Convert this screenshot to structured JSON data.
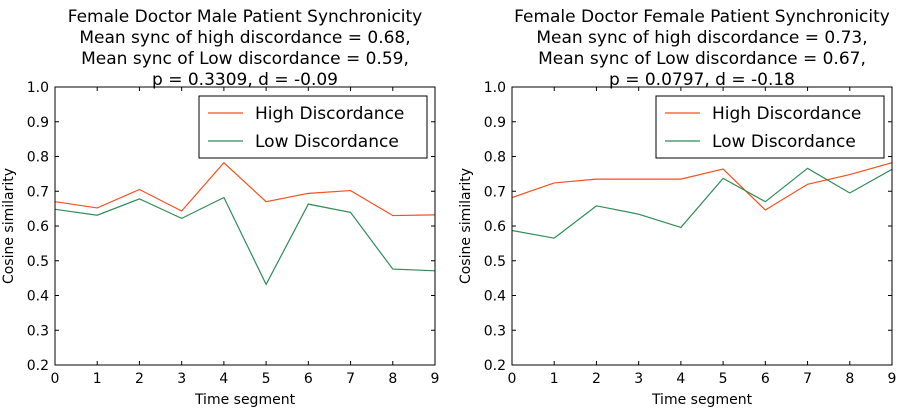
{
  "chart_data": [
    {
      "type": "line",
      "title_lines": [
        "Female Doctor Male Patient Synchronicity",
        "Mean sync of high discordance = 0.68,",
        "Mean sync of Low discordance = 0.59,",
        "p = 0.3309, d = -0.09"
      ],
      "xlabel": "Time segment",
      "ylabel": "Cosine similarity",
      "xlim": [
        0,
        9
      ],
      "ylim": [
        0.2,
        1.0
      ],
      "xticks": [
        "0",
        "1",
        "2",
        "3",
        "4",
        "5",
        "6",
        "7",
        "8",
        "9"
      ],
      "yticks": [
        "0.2",
        "0.3",
        "0.4",
        "0.5",
        "0.6",
        "0.7",
        "0.8",
        "0.9",
        "1.0"
      ],
      "grid": false,
      "legend_position": "top-right",
      "x": [
        0,
        1,
        2,
        3,
        4,
        5,
        6,
        7,
        8,
        9
      ],
      "series": [
        {
          "name": "High Discordance",
          "color": "#f4511e",
          "values": [
            0.67,
            0.652,
            0.705,
            0.643,
            0.782,
            0.67,
            0.694,
            0.702,
            0.63,
            0.632
          ]
        },
        {
          "name": "Low Discordance",
          "color": "#2e8b57",
          "values": [
            0.648,
            0.631,
            0.678,
            0.622,
            0.682,
            0.432,
            0.663,
            0.639,
            0.476,
            0.471
          ]
        }
      ]
    },
    {
      "type": "line",
      "title_lines": [
        "Female Doctor Female Patient Synchronicity",
        "Mean sync of high discordance = 0.73,",
        "Mean sync of Low discordance = 0.67,",
        "p = 0.0797, d = -0.18"
      ],
      "xlabel": "Time segment",
      "ylabel": "Cosine similarity",
      "xlim": [
        0,
        9
      ],
      "ylim": [
        0.2,
        1.0
      ],
      "xticks": [
        "0",
        "1",
        "2",
        "3",
        "4",
        "5",
        "6",
        "7",
        "8",
        "9"
      ],
      "yticks": [
        "0.2",
        "0.3",
        "0.4",
        "0.5",
        "0.6",
        "0.7",
        "0.8",
        "0.9",
        "1.0"
      ],
      "grid": false,
      "legend_position": "top-right",
      "x": [
        0,
        1,
        2,
        3,
        4,
        5,
        6,
        7,
        8,
        9
      ],
      "series": [
        {
          "name": "High Discordance",
          "color": "#f4511e",
          "values": [
            0.682,
            0.724,
            0.735,
            0.735,
            0.735,
            0.764,
            0.646,
            0.72,
            0.748,
            0.782
          ]
        },
        {
          "name": "Low Discordance",
          "color": "#2e8b57",
          "values": [
            0.587,
            0.565,
            0.658,
            0.634,
            0.596,
            0.737,
            0.67,
            0.766,
            0.695,
            0.763
          ]
        }
      ]
    }
  ]
}
